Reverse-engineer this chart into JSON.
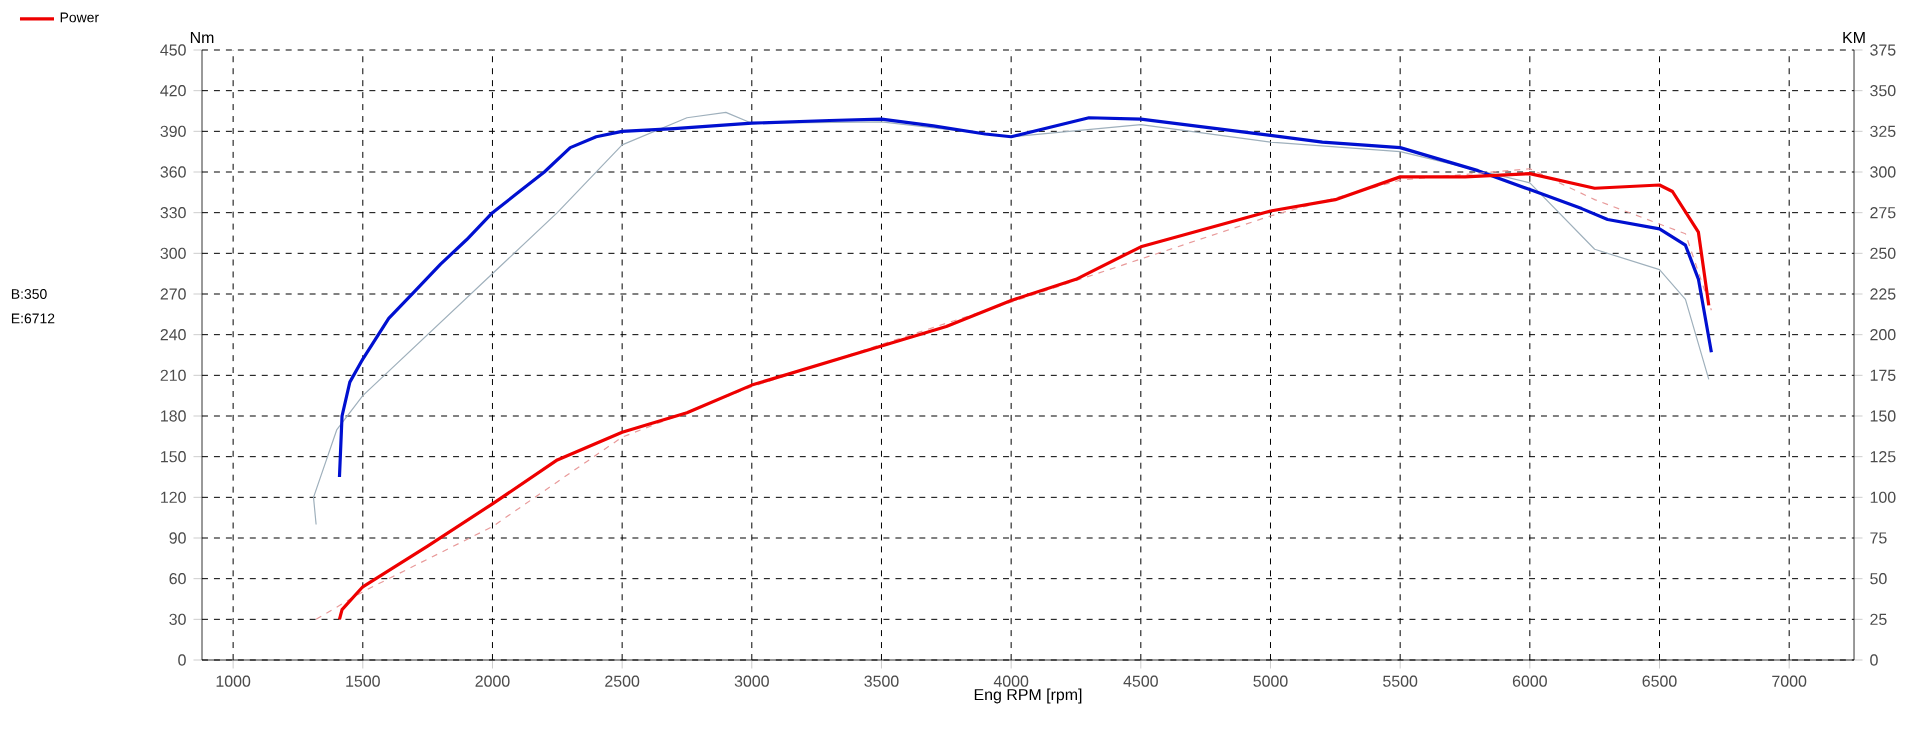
{
  "chart_data": {
    "type": "line",
    "xlabel": "Eng RPM [rpm]",
    "ylabel": "Nm",
    "y2label": "KM",
    "xlim": [
      880,
      7250
    ],
    "xticks": [
      1000,
      1500,
      2000,
      2500,
      3000,
      3500,
      4000,
      4500,
      5000,
      5500,
      6000,
      6500,
      7000
    ],
    "ylim": [
      0,
      450
    ],
    "yticks": [
      0,
      30,
      60,
      90,
      120,
      150,
      180,
      210,
      240,
      270,
      300,
      330,
      360,
      390,
      420,
      450
    ],
    "y2lim": [
      0,
      375
    ],
    "y2ticks": [
      0,
      25,
      50,
      75,
      100,
      125,
      150,
      175,
      200,
      225,
      250,
      275,
      300,
      325,
      350,
      375
    ],
    "grid": true,
    "legend": "left",
    "marker": "none",
    "annotations": [
      "B:350",
      "E:6712"
    ],
    "series": [
      {
        "color": "#9fb0bc",
        "line_style": "solid",
        "x": [
          1320,
          1310,
          1400,
          1500,
          1750,
          2000,
          2250,
          2500,
          2750,
          2900,
          3000,
          3500,
          4000,
          4500,
          5000,
          5500,
          6000,
          6250,
          6500,
          6600,
          6690
        ],
        "values": [
          100,
          120,
          170,
          195,
          240,
          285,
          330,
          380,
          400,
          404,
          396,
          397,
          386,
          395,
          382,
          375,
          352,
          303,
          288,
          266,
          207
        ]
      },
      {
        "color": "#e89a9a",
        "line_style": "dashed",
        "axis": "y2",
        "x": [
          1320,
          1500,
          2000,
          2500,
          3000,
          4000,
          5000,
          5500,
          6000,
          6250,
          6500,
          6600,
          6700
        ],
        "values": [
          25,
          42,
          82,
          137,
          168,
          220,
          273,
          295,
          302,
          283,
          268,
          262,
          215
        ]
      },
      {
        "color": "#0010d0",
        "line_style": "solid",
        "x": [
          1410,
          1420,
          1450,
          1500,
          1600,
          1700,
          1800,
          1900,
          2000,
          2100,
          2200,
          2300,
          2400,
          2500,
          2700,
          3000,
          3300,
          3500,
          3700,
          3900,
          4000,
          4300,
          4500,
          5000,
          5200,
          5500,
          5800,
          6000,
          6200,
          6300,
          6500,
          6600,
          6650,
          6700
        ],
        "values": [
          135,
          180,
          205,
          222,
          252,
          272,
          292,
          310,
          330,
          345,
          360,
          378,
          386,
          390,
          392,
          396,
          398,
          399,
          394,
          388,
          386,
          400,
          399,
          387,
          382,
          378,
          361,
          347,
          333,
          325,
          318,
          306,
          281,
          227
        ]
      },
      {
        "name": "Power",
        "color": "#ee0000",
        "line_style": "solid",
        "axis": "y2",
        "x": [
          1410,
          1420,
          1500,
          1750,
          2000,
          2250,
          2500,
          2750,
          3000,
          3250,
          3500,
          3750,
          4000,
          4250,
          4500,
          4750,
          5000,
          5250,
          5500,
          5750,
          6000,
          6250,
          6500,
          6550,
          6650,
          6690
        ],
        "values": [
          25,
          31,
          45,
          70,
          96,
          123,
          140,
          152,
          169,
          181,
          193,
          205,
          221,
          234,
          254,
          265,
          276,
          283,
          297,
          297,
          299,
          290,
          292,
          288,
          263,
          218
        ]
      }
    ]
  }
}
